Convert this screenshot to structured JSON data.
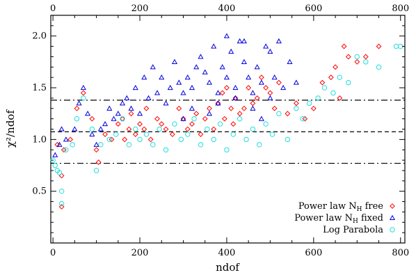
{
  "chart_data": {
    "type": "scatter",
    "xlabel": "ndof",
    "ylabel": "χ²/ndof",
    "xlim": [
      -5,
      810
    ],
    "ylim": [
      0.0,
      2.2
    ],
    "x_ticks": [
      "0",
      "200",
      "400",
      "600",
      "800"
    ],
    "top_x_ticks": [
      "0",
      "200",
      "400",
      "600",
      "800"
    ],
    "y_ticks": [
      "0.5",
      "1.0",
      "1.5",
      "2.0"
    ],
    "reference_lines": [
      {
        "y": 1.38,
        "style": "dash-dot"
      },
      {
        "y": 1.075,
        "style": "dashed"
      },
      {
        "y": 0.77,
        "style": "dash-dot"
      }
    ],
    "legend_position": "bottom-right",
    "series": [
      {
        "name_main": "Power law N",
        "name_sub": "H",
        "name_tail": " free",
        "marker": "diamond",
        "color": "#ff0000",
        "x": [
          10,
          20,
          20,
          25,
          40,
          55,
          70,
          90,
          100,
          105,
          120,
          135,
          150,
          160,
          165,
          175,
          180,
          190,
          200,
          210,
          215,
          225,
          240,
          250,
          260,
          275,
          290,
          300,
          310,
          320,
          330,
          340,
          350,
          360,
          370,
          380,
          390,
          395,
          400,
          410,
          415,
          420,
          430,
          440,
          450,
          460,
          470,
          480,
          490,
          500,
          510,
          520,
          540,
          560,
          580,
          600,
          620,
          640,
          650,
          660,
          670,
          680,
          700,
          720,
          750
        ],
        "y": [
          0.95,
          0.35,
          0.65,
          0.9,
          1.0,
          1.3,
          1.45,
          1.2,
          0.9,
          0.78,
          1.05,
          1.0,
          1.15,
          1.2,
          1.0,
          1.1,
          1.25,
          1.05,
          1.15,
          1.1,
          1.3,
          1.0,
          1.2,
          1.15,
          1.1,
          1.05,
          1.3,
          1.2,
          1.1,
          1.15,
          1.25,
          1.05,
          1.2,
          1.3,
          1.1,
          1.35,
          1.45,
          1.2,
          1.5,
          1.3,
          1.15,
          1.4,
          1.25,
          1.3,
          1.5,
          1.35,
          1.4,
          1.6,
          1.5,
          1.45,
          1.3,
          1.55,
          1.25,
          1.35,
          1.2,
          1.3,
          1.55,
          1.6,
          1.7,
          1.4,
          1.9,
          1.8,
          1.75,
          1.8,
          1.9
        ]
      },
      {
        "name_main": "Power law N",
        "name_sub": "H",
        "name_tail": " fixed",
        "marker": "triangle",
        "color": "#0000dd",
        "x": [
          5,
          15,
          20,
          30,
          50,
          60,
          70,
          80,
          90,
          100,
          110,
          120,
          130,
          140,
          150,
          160,
          170,
          180,
          190,
          200,
          210,
          220,
          230,
          240,
          250,
          260,
          270,
          280,
          290,
          300,
          310,
          320,
          330,
          340,
          350,
          360,
          370,
          380,
          390,
          400,
          410,
          420,
          430,
          440,
          450,
          460,
          470,
          480,
          490,
          500,
          510,
          520,
          530,
          545,
          560,
          300,
          320,
          360,
          380,
          400,
          420,
          440,
          460,
          480,
          500
        ],
        "y": [
          0.85,
          0.95,
          1.1,
          1.0,
          1.1,
          1.35,
          1.5,
          1.25,
          1.05,
          0.95,
          1.1,
          1.15,
          1.3,
          1.2,
          1.25,
          1.35,
          1.4,
          1.3,
          1.5,
          1.25,
          1.6,
          1.4,
          1.7,
          1.45,
          1.6,
          1.35,
          1.5,
          1.75,
          1.55,
          1.45,
          1.6,
          1.5,
          1.7,
          1.8,
          1.65,
          1.55,
          1.9,
          1.45,
          1.7,
          1.6,
          1.85,
          1.5,
          1.95,
          1.75,
          1.6,
          1.45,
          1.7,
          1.55,
          1.9,
          1.4,
          1.6,
          1.95,
          1.5,
          1.75,
          1.55,
          1.2,
          1.3,
          1.25,
          1.35,
          2.0,
          1.4,
          1.95,
          1.3,
          1.2,
          1.85
        ]
      },
      {
        "name_main": "Log Parabola",
        "name_sub": "",
        "name_tail": "",
        "marker": "circle",
        "color": "#22dddd",
        "x": [
          0,
          5,
          10,
          15,
          20,
          20,
          30,
          45,
          55,
          70,
          90,
          100,
          110,
          130,
          145,
          160,
          175,
          190,
          200,
          215,
          230,
          245,
          260,
          280,
          295,
          310,
          325,
          340,
          355,
          370,
          385,
          400,
          415,
          430,
          445,
          460,
          475,
          490,
          505,
          520,
          540,
          560,
          575,
          590,
          610,
          625,
          645,
          660,
          680,
          700,
          720,
          750,
          790,
          800
        ],
        "y": [
          0.8,
          0.75,
          0.7,
          0.68,
          0.5,
          0.38,
          0.9,
          0.95,
          1.2,
          1.4,
          1.1,
          0.7,
          0.95,
          1.0,
          1.05,
          1.2,
          0.95,
          1.1,
          1.0,
          1.05,
          0.95,
          1.1,
          0.9,
          1.15,
          1.0,
          1.05,
          1.2,
          0.95,
          1.1,
          1.0,
          1.15,
          0.9,
          1.05,
          1.2,
          1.0,
          1.1,
          0.95,
          1.15,
          1.05,
          1.25,
          1.0,
          1.3,
          1.2,
          1.35,
          1.4,
          1.5,
          1.45,
          1.6,
          1.55,
          1.8,
          1.75,
          1.7,
          1.9,
          1.9
        ]
      }
    ]
  }
}
